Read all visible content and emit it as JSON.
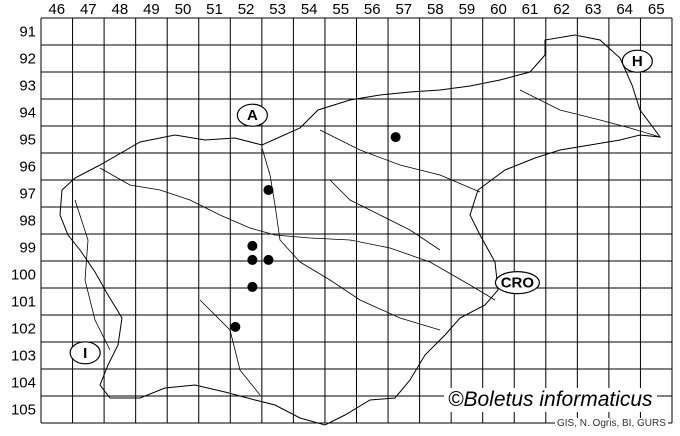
{
  "map": {
    "grid_columns": [
      "46",
      "47",
      "48",
      "49",
      "50",
      "51",
      "52",
      "53",
      "54",
      "55",
      "56",
      "57",
      "58",
      "59",
      "60",
      "61",
      "62",
      "63",
      "64",
      "65"
    ],
    "grid_rows": [
      "91",
      "92",
      "93",
      "94",
      "95",
      "96",
      "97",
      "98",
      "99",
      "100",
      "101",
      "102",
      "103",
      "104",
      "105"
    ],
    "country_labels": [
      {
        "text": "A",
        "x": 52.7,
        "y": 94.6
      },
      {
        "text": "H",
        "x": 64.9,
        "y": 92.6
      },
      {
        "text": "CRO",
        "x": 61.1,
        "y": 100.8
      },
      {
        "text": "I",
        "x": 47.4,
        "y": 103.4
      }
    ],
    "records": [
      {
        "x": 57.24,
        "y": 95.41
      },
      {
        "x": 53.21,
        "y": 97.37
      },
      {
        "x": 52.7,
        "y": 99.44
      },
      {
        "x": 52.7,
        "y": 99.96
      },
      {
        "x": 53.21,
        "y": 99.96
      },
      {
        "x": 52.7,
        "y": 100.96
      },
      {
        "x": 52.16,
        "y": 102.44
      }
    ],
    "record_color": "#000000"
  },
  "copyright": "©Boletus informaticus",
  "credit": "GIS, N. Ogris, BI, GURS"
}
